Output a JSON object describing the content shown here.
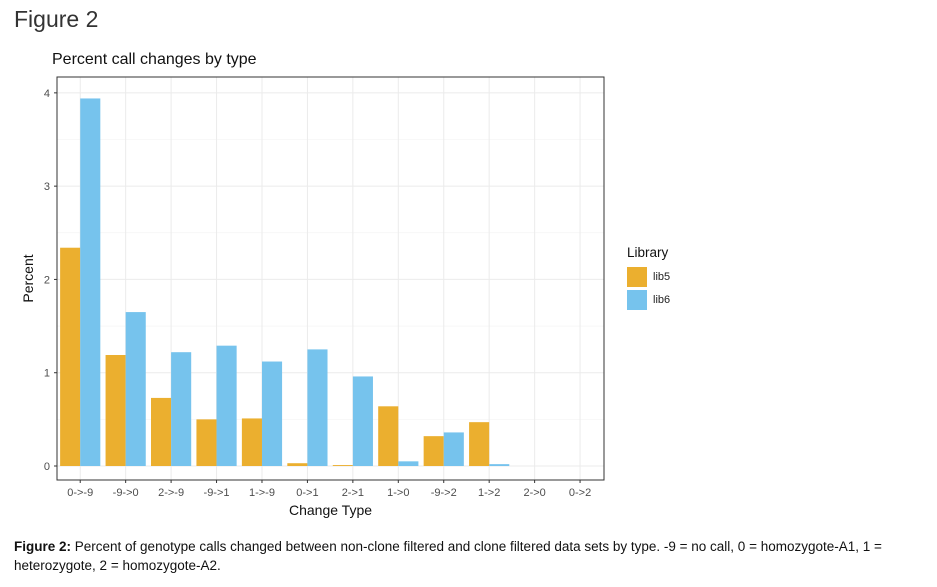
{
  "figure_heading": "Figure 2",
  "caption": {
    "label": "Figure 2:",
    "text": " Percent of genotype calls changed between non-clone filtered and clone filtered data sets by type. -9 = no call, 0 = homozygote-A1, 1 = heterozygote, 2 = homozygote-A2."
  },
  "chart_data": {
    "type": "bar",
    "title": "Percent call changes by type",
    "xlabel": "Change Type",
    "ylabel": "Percent",
    "categories": [
      "0->-9",
      "-9->0",
      "2->-9",
      "-9->1",
      "1->-9",
      "0->1",
      "2->1",
      "1->0",
      "-9->2",
      "1->2",
      "2->0",
      "0->2"
    ],
    "series": [
      {
        "name": "lib5",
        "color": "#EBAF2F",
        "values": [
          2.34,
          1.19,
          0.73,
          0.5,
          0.51,
          0.03,
          0.01,
          0.64,
          0.32,
          0.47,
          0.0,
          0.0
        ]
      },
      {
        "name": "lib6",
        "color": "#76C3ED",
        "values": [
          3.94,
          1.65,
          1.22,
          1.29,
          1.12,
          1.25,
          0.96,
          0.05,
          0.36,
          0.02,
          0.0,
          0.0
        ]
      }
    ],
    "yticks": [
      0,
      1,
      2,
      3,
      4
    ],
    "ylim": [
      -0.15,
      4.17
    ],
    "legend": {
      "title": "Library",
      "position": "right"
    },
    "grid": true
  }
}
